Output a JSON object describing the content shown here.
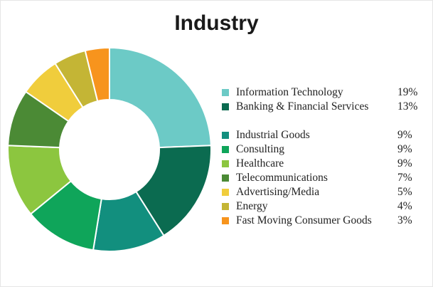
{
  "chart_data": {
    "type": "pie",
    "style": "donut",
    "title": "Industry",
    "legend_position": "right",
    "slices": [
      {
        "label": "Information Technology",
        "value": 19,
        "display": "19%",
        "color": "#6ccac6"
      },
      {
        "label": "Banking & Financial Services",
        "value": 13,
        "display": "13%",
        "color": "#0b6b50"
      },
      {
        "label": "Industrial Goods",
        "value": 9,
        "display": "9%",
        "color": "#128f7e"
      },
      {
        "label": "Consulting",
        "value": 9,
        "display": "9%",
        "color": "#0fa55a"
      },
      {
        "label": "Healthcare",
        "value": 9,
        "display": "9%",
        "color": "#8cc63f"
      },
      {
        "label": "Telecommunications",
        "value": 7,
        "display": "7%",
        "color": "#4b8a35"
      },
      {
        "label": "Advertising/Media",
        "value": 5,
        "display": "5%",
        "color": "#f0cd3c"
      },
      {
        "label": "Energy",
        "value": 4,
        "display": "4%",
        "color": "#c4b535"
      },
      {
        "label": "Fast Moving Consumer Goods",
        "value": 3,
        "display": "3%",
        "color": "#f7941d"
      }
    ]
  }
}
